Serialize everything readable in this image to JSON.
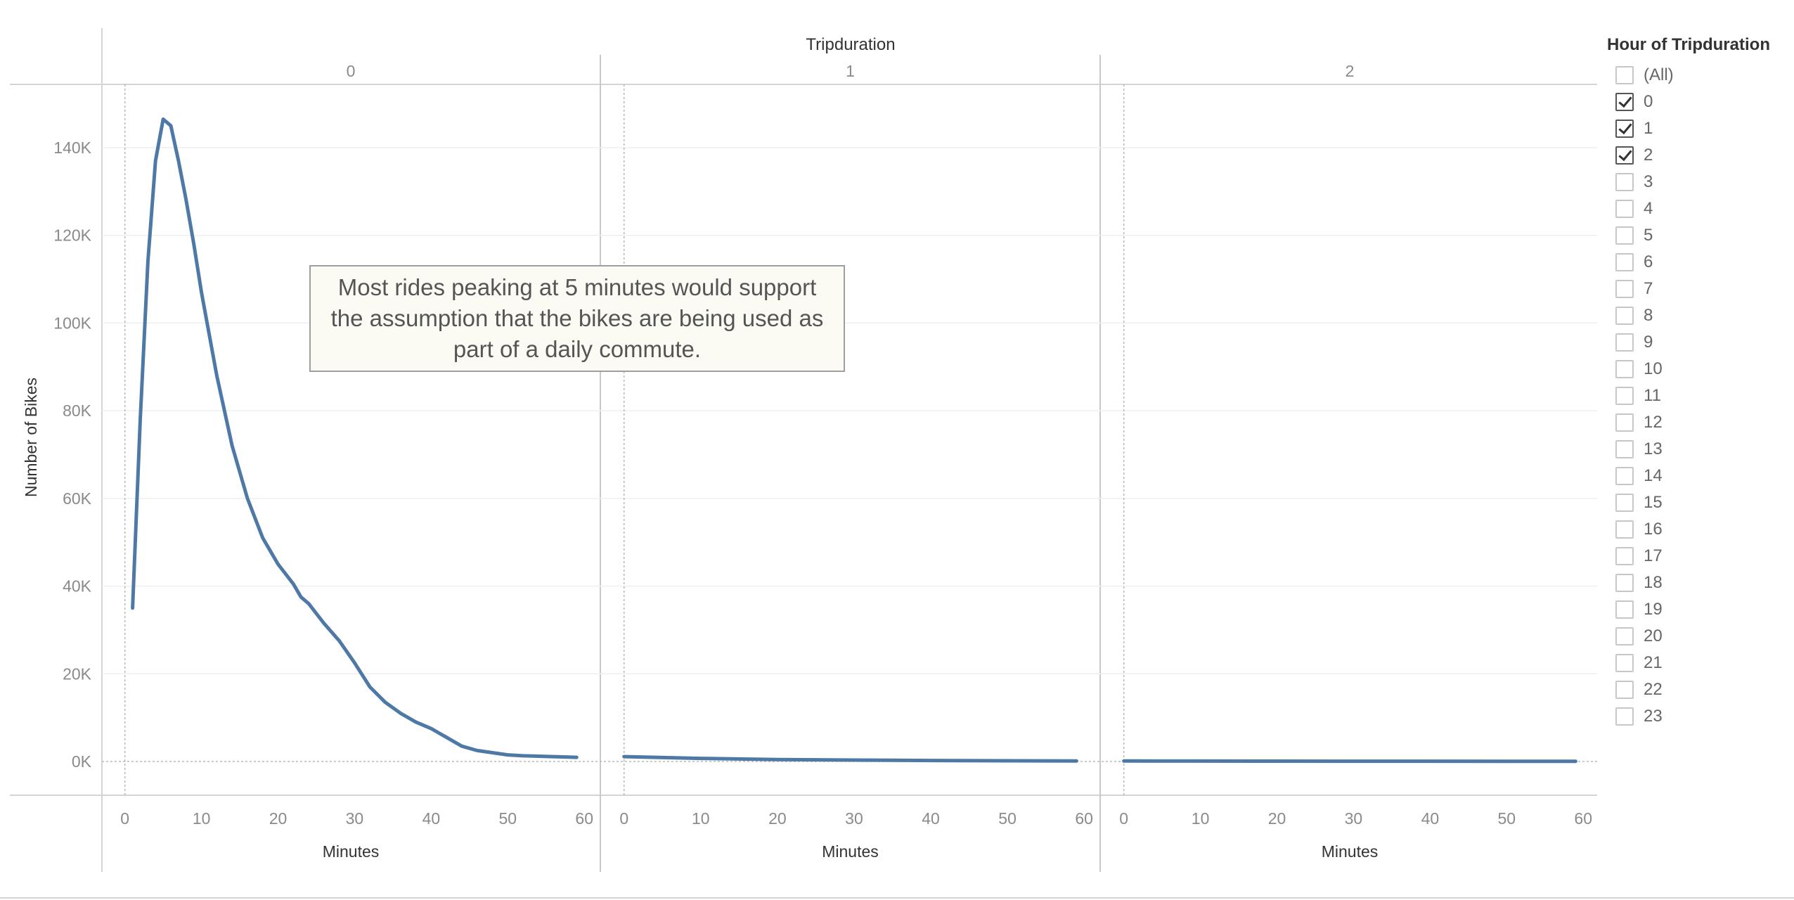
{
  "chart_data": {
    "type": "line",
    "column_header_title": "Tripduration",
    "ylabel": "Number of Bikes",
    "xlabel": "Minutes",
    "ylim": [
      0,
      150000
    ],
    "y_ticks": [
      {
        "value": 0,
        "label": "0K"
      },
      {
        "value": 20000,
        "label": "20K"
      },
      {
        "value": 40000,
        "label": "40K"
      },
      {
        "value": 60000,
        "label": "60K"
      },
      {
        "value": 80000,
        "label": "80K"
      },
      {
        "value": 100000,
        "label": "100K"
      },
      {
        "value": 120000,
        "label": "120K"
      },
      {
        "value": 140000,
        "label": "140K"
      }
    ],
    "x_ticks": [
      "0",
      "10",
      "20",
      "30",
      "40",
      "50",
      "60"
    ],
    "xlim": [
      -3,
      62
    ],
    "line_color": "#4e79a7",
    "panels": [
      {
        "label": "0",
        "x": [
          1,
          2,
          3,
          4,
          5,
          6,
          7,
          8,
          9,
          10,
          12,
          14,
          16,
          18,
          20,
          22,
          23,
          24,
          26,
          28,
          30,
          32,
          34,
          36,
          38,
          40,
          41,
          42,
          44,
          46,
          48,
          50,
          52,
          54,
          56,
          58,
          59
        ],
        "y": [
          35000,
          78000,
          114000,
          137000,
          146500,
          145000,
          137000,
          128000,
          118000,
          107000,
          88000,
          72000,
          60000,
          51000,
          45000,
          40500,
          37500,
          36000,
          31500,
          27500,
          22500,
          17000,
          13500,
          11000,
          9000,
          7500,
          6500,
          5500,
          3500,
          2500,
          2000,
          1500,
          1300,
          1200,
          1100,
          1000,
          950
        ]
      },
      {
        "label": "1",
        "x": [
          0,
          10,
          20,
          30,
          40,
          50,
          59
        ],
        "y": [
          1100,
          700,
          450,
          320,
          220,
          160,
          120
        ]
      },
      {
        "label": "2",
        "x": [
          0,
          10,
          20,
          30,
          40,
          50,
          59
        ],
        "y": [
          120,
          100,
          85,
          70,
          60,
          50,
          45
        ]
      }
    ]
  },
  "annotation": {
    "text": "Most rides peaking at 5 minutes would support the assumption that the bikes are being used as part of a daily commute."
  },
  "legend": {
    "title": "Hour of Tripduration",
    "items": [
      {
        "label": "(All)",
        "checked": false
      },
      {
        "label": "0",
        "checked": true
      },
      {
        "label": "1",
        "checked": true
      },
      {
        "label": "2",
        "checked": true
      },
      {
        "label": "3",
        "checked": false
      },
      {
        "label": "4",
        "checked": false
      },
      {
        "label": "5",
        "checked": false
      },
      {
        "label": "6",
        "checked": false
      },
      {
        "label": "7",
        "checked": false
      },
      {
        "label": "8",
        "checked": false
      },
      {
        "label": "9",
        "checked": false
      },
      {
        "label": "10",
        "checked": false
      },
      {
        "label": "11",
        "checked": false
      },
      {
        "label": "12",
        "checked": false
      },
      {
        "label": "13",
        "checked": false
      },
      {
        "label": "14",
        "checked": false
      },
      {
        "label": "15",
        "checked": false
      },
      {
        "label": "16",
        "checked": false
      },
      {
        "label": "17",
        "checked": false
      },
      {
        "label": "18",
        "checked": false
      },
      {
        "label": "19",
        "checked": false
      },
      {
        "label": "20",
        "checked": false
      },
      {
        "label": "21",
        "checked": false
      },
      {
        "label": "22",
        "checked": false
      },
      {
        "label": "23",
        "checked": false
      }
    ]
  }
}
